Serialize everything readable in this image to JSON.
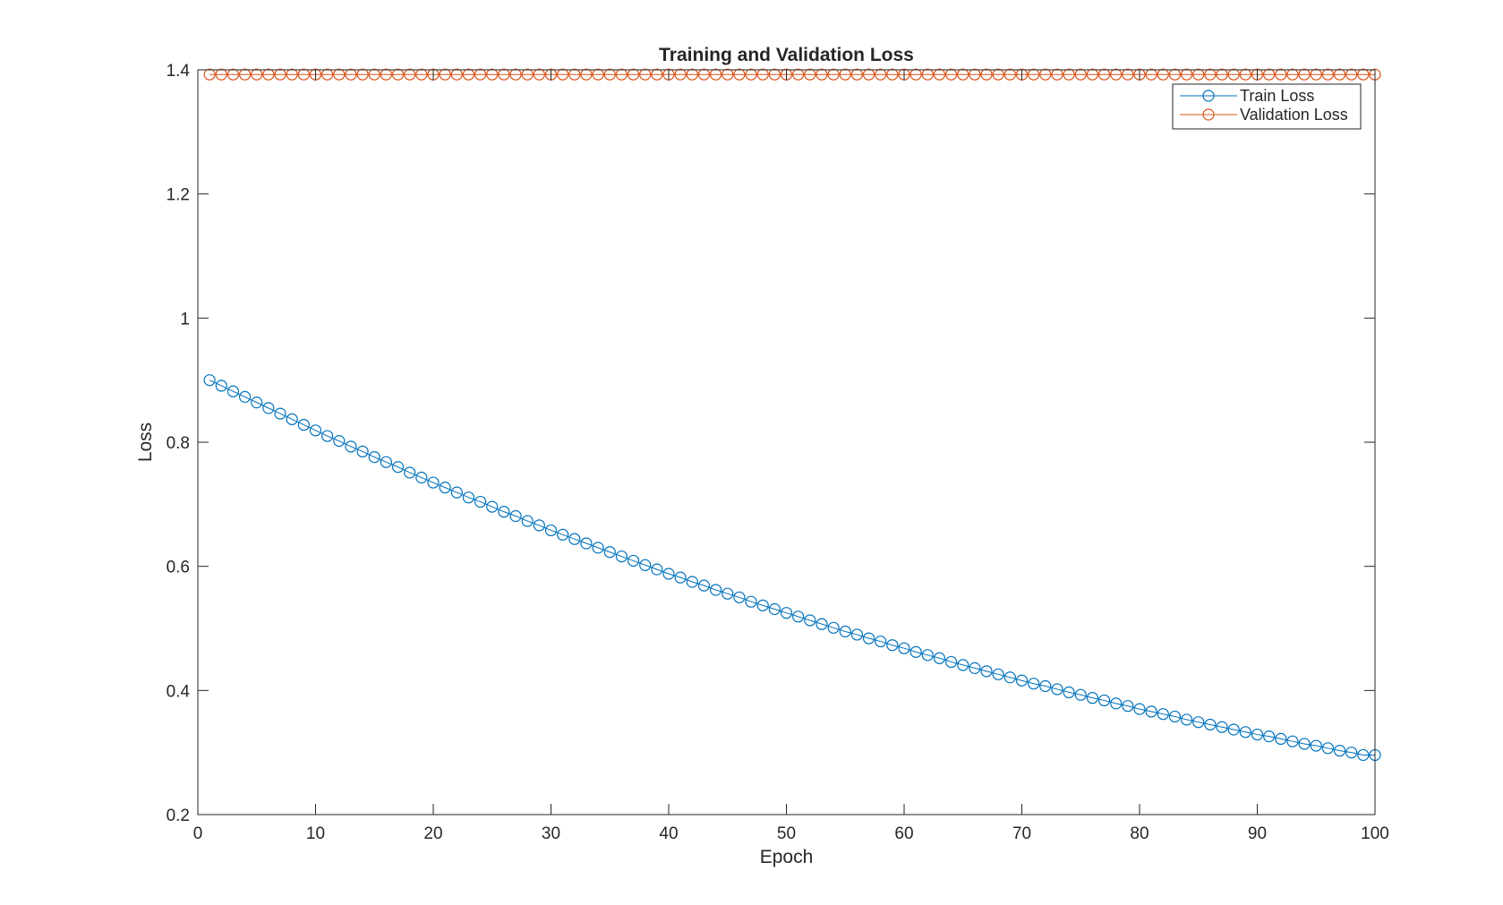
{
  "chart_data": {
    "type": "line",
    "title": "Training and Validation Loss",
    "xlabel": "Epoch",
    "ylabel": "Loss",
    "xlim": [
      0,
      100
    ],
    "ylim": [
      0.2,
      1.4
    ],
    "xticks": [
      0,
      10,
      20,
      30,
      40,
      50,
      60,
      70,
      80,
      90,
      100
    ],
    "yticks": [
      0.2,
      0.4,
      0.6,
      0.8,
      1.0,
      1.2,
      1.4
    ],
    "xtick_labels": [
      "0",
      "10",
      "20",
      "30",
      "40",
      "50",
      "60",
      "70",
      "80",
      "90",
      "100"
    ],
    "ytick_labels": [
      "0.2",
      "0.4",
      "0.6",
      "0.8",
      "1",
      "1.2",
      "1.4"
    ],
    "grid": false,
    "legend_position": "top-right",
    "x": [
      1,
      2,
      3,
      4,
      5,
      6,
      7,
      8,
      9,
      10,
      11,
      12,
      13,
      14,
      15,
      16,
      17,
      18,
      19,
      20,
      21,
      22,
      23,
      24,
      25,
      26,
      27,
      28,
      29,
      30,
      31,
      32,
      33,
      34,
      35,
      36,
      37,
      38,
      39,
      40,
      41,
      42,
      43,
      44,
      45,
      46,
      47,
      48,
      49,
      50,
      51,
      52,
      53,
      54,
      55,
      56,
      57,
      58,
      59,
      60,
      61,
      62,
      63,
      64,
      65,
      66,
      67,
      68,
      69,
      70,
      71,
      72,
      73,
      74,
      75,
      76,
      77,
      78,
      79,
      80,
      81,
      82,
      83,
      84,
      85,
      86,
      87,
      88,
      89,
      90,
      91,
      92,
      93,
      94,
      95,
      96,
      97,
      98,
      99,
      100
    ],
    "series": [
      {
        "name": "Train Loss",
        "color": "#0072BD",
        "marker": "circle",
        "values": [
          0.9,
          0.891,
          0.882,
          0.873,
          0.864,
          0.855,
          0.846,
          0.837,
          0.828,
          0.819,
          0.81,
          0.802,
          0.793,
          0.785,
          0.776,
          0.768,
          0.76,
          0.751,
          0.743,
          0.735,
          0.727,
          0.719,
          0.711,
          0.704,
          0.696,
          0.688,
          0.681,
          0.673,
          0.666,
          0.658,
          0.651,
          0.644,
          0.637,
          0.63,
          0.623,
          0.616,
          0.609,
          0.602,
          0.595,
          0.588,
          0.582,
          0.575,
          0.569,
          0.562,
          0.556,
          0.55,
          0.543,
          0.537,
          0.531,
          0.525,
          0.519,
          0.513,
          0.507,
          0.501,
          0.495,
          0.49,
          0.484,
          0.479,
          0.473,
          0.468,
          0.462,
          0.457,
          0.452,
          0.446,
          0.441,
          0.436,
          0.431,
          0.426,
          0.421,
          0.416,
          0.411,
          0.407,
          0.402,
          0.397,
          0.393,
          0.388,
          0.384,
          0.379,
          0.375,
          0.37,
          0.366,
          0.362,
          0.358,
          0.353,
          0.349,
          0.345,
          0.341,
          0.337,
          0.333,
          0.329,
          0.326,
          0.322,
          0.318,
          0.314,
          0.311,
          0.307,
          0.303,
          0.3,
          0.296,
          0.296
        ]
      },
      {
        "name": "Validation Loss",
        "color": "#D95319",
        "marker": "circle",
        "values": [
          1.3925,
          1.3925,
          1.3925,
          1.3925,
          1.3925,
          1.3925,
          1.3925,
          1.3925,
          1.3925,
          1.3925,
          1.3925,
          1.3925,
          1.3925,
          1.3925,
          1.3925,
          1.3925,
          1.3925,
          1.3925,
          1.3925,
          1.3925,
          1.3925,
          1.3925,
          1.3925,
          1.3925,
          1.3925,
          1.3925,
          1.3925,
          1.3925,
          1.3925,
          1.3925,
          1.3925,
          1.3925,
          1.3925,
          1.3925,
          1.3925,
          1.3925,
          1.3925,
          1.3925,
          1.3925,
          1.3925,
          1.3925,
          1.3925,
          1.3925,
          1.3925,
          1.3925,
          1.3925,
          1.3925,
          1.3925,
          1.3925,
          1.3925,
          1.3925,
          1.3925,
          1.3925,
          1.3925,
          1.3925,
          1.3925,
          1.3925,
          1.3925,
          1.3925,
          1.3925,
          1.3925,
          1.3925,
          1.3925,
          1.3925,
          1.3925,
          1.3925,
          1.3925,
          1.3925,
          1.3925,
          1.3925,
          1.3925,
          1.3925,
          1.3925,
          1.3925,
          1.3925,
          1.3925,
          1.3925,
          1.3925,
          1.3925,
          1.3925,
          1.3925,
          1.3925,
          1.3925,
          1.3925,
          1.3925,
          1.3925,
          1.3925,
          1.3925,
          1.3925,
          1.3925,
          1.3925,
          1.3925,
          1.3925,
          1.3925,
          1.3925,
          1.3925,
          1.3925,
          1.3925,
          1.3925,
          1.3925
        ]
      }
    ]
  }
}
